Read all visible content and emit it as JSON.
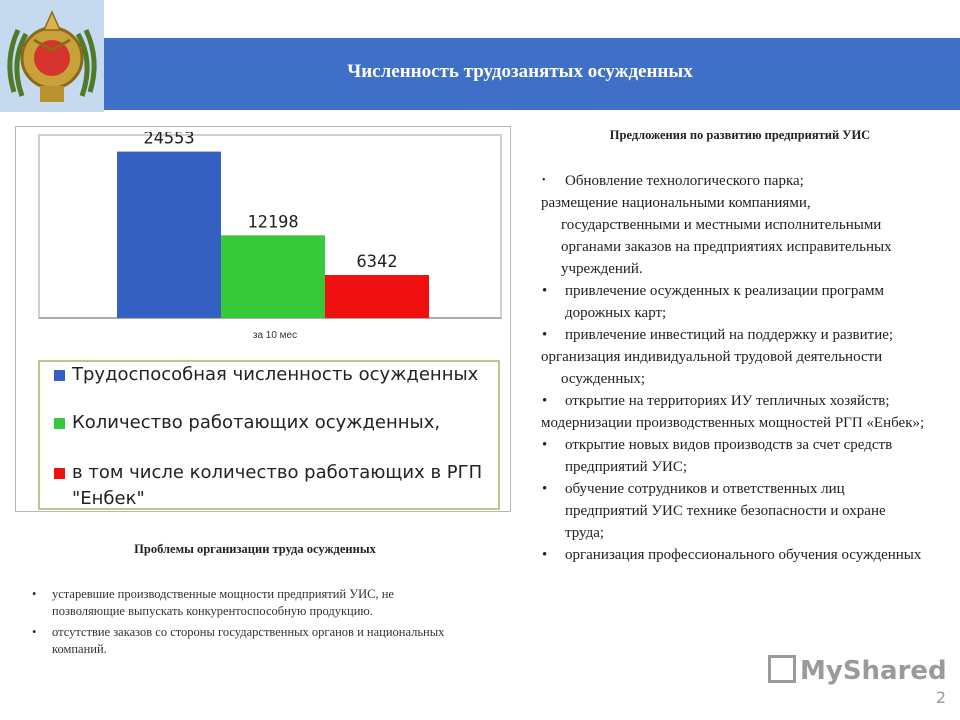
{
  "header": {
    "title": "Численность трудозанятых осужденных"
  },
  "chart_data": {
    "type": "bar",
    "categories": [
      "за 10 мес"
    ],
    "series": [
      {
        "name": "Трудоспособная численность осужденных",
        "values": [
          24553
        ],
        "color": "#3461c1"
      },
      {
        "name": "Количество работающих осужденных,",
        "values": [
          12198
        ],
        "color": "#38c93a"
      },
      {
        "name": "в том числе количество работающих в РГП \"Енбек\"",
        "values": [
          6342
        ],
        "color": "#f01010"
      }
    ],
    "data_labels": [
      "24553",
      "12198",
      "6342"
    ],
    "ylim": [
      0,
      27000
    ],
    "grid": false,
    "legend_position": "bottom"
  },
  "legend": {
    "items": [
      {
        "label": "Трудоспособная численность осужденных",
        "color": "#3461c1"
      },
      {
        "label": "Количество работающих осужденных,",
        "color": "#38c93a"
      },
      {
        "label": "в том числе количество работающих в РГП \"Енбек\"",
        "color": "#f01010"
      }
    ]
  },
  "problems": {
    "title": "Проблемы организации труда осужденных",
    "items": [
      "устаревшие производственные мощности предприятий УИС, не позволяющие выпускать конкурентоспособную продукцию.",
      "отсутствие заказов со стороны государственных органов и национальных компаний."
    ]
  },
  "proposals": {
    "title": "Предложения по развитию предприятий УИС",
    "items": [
      "Обновление технологического парка;",
      "размещение национальными компаниями, государственными и местными исполнительными органами заказов на предприятиях исправительных учреждений.",
      "привлечение осужденных к реализации программ дорожных карт;",
      "привлечение инвестиций на поддержку и развитие;",
      "организация индивидуальной трудовой деятельности осужденных;",
      "открытие на территориях ИУ тепличных хозяйств;",
      "модернизации производственных мощностей РГП «Енбек»;",
      "открытие новых видов производств за счет средств предприятий УИС;",
      "обучение сотрудников и ответственных лиц предприятий УИС технике безопасности и охране труда;",
      "организация профессионального обучения осужденных"
    ]
  },
  "watermark": "MyShared",
  "page_number": "2",
  "emblem_icon": "emblem-icon"
}
